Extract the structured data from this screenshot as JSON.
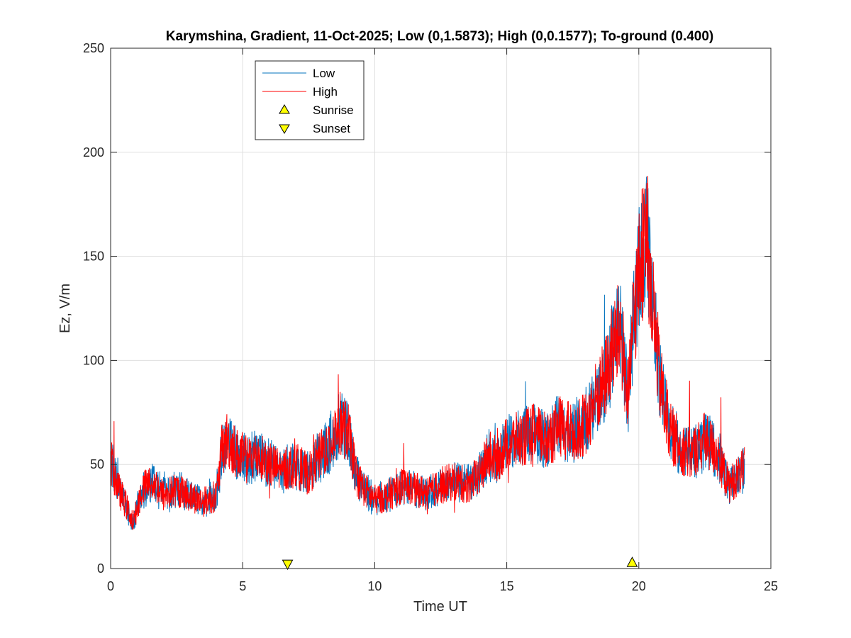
{
  "chart_data": {
    "type": "line",
    "title": "Karymshina, Gradient, 11-Oct-2025;  Low (0,1.5873); High (0,0.1577); To-ground (0.400)",
    "xlabel": "Time UT",
    "ylabel": "Ez, V/m",
    "xlim": [
      0,
      25
    ],
    "ylim": [
      0,
      250
    ],
    "xticks": [
      0,
      5,
      10,
      15,
      20,
      25
    ],
    "yticks": [
      0,
      50,
      100,
      150,
      200,
      250
    ],
    "grid": true,
    "legend_position": "top-left",
    "series": [
      {
        "name": "Low",
        "color": "#0072BD",
        "x": [
          0,
          0.3,
          0.6,
          0.85,
          1.2,
          1.6,
          2,
          2.5,
          3,
          3.5,
          4,
          4.2,
          4.4,
          4.8,
          5.2,
          5.6,
          6,
          6.5,
          7,
          7.5,
          7.8,
          8.3,
          8.7,
          9,
          9.3,
          9.6,
          10,
          10.5,
          11,
          11.5,
          12,
          12.5,
          13,
          13.5,
          14,
          14.3,
          14.6,
          15,
          15.5,
          16,
          16.5,
          17,
          17.5,
          18,
          18.3,
          18.7,
          19,
          19.3,
          19.6,
          19.8,
          20.1,
          20.3,
          20.5,
          20.8,
          21.2,
          21.6,
          22,
          22.5,
          23,
          23.4,
          23.8,
          24
        ],
        "y": [
          52,
          38,
          30,
          22,
          38,
          42,
          35,
          38,
          35,
          32,
          35,
          55,
          62,
          55,
          52,
          55,
          50,
          47,
          50,
          45,
          52,
          60,
          70,
          65,
          45,
          38,
          33,
          35,
          40,
          38,
          36,
          40,
          42,
          40,
          45,
          55,
          52,
          60,
          62,
          65,
          62,
          68,
          65,
          70,
          80,
          90,
          105,
          115,
          80,
          120,
          150,
          160,
          130,
          90,
          65,
          58,
          55,
          62,
          55,
          40,
          45,
          48
        ]
      },
      {
        "name": "High",
        "color": "#FF0000",
        "x": [
          0,
          0.3,
          0.6,
          0.85,
          1.2,
          1.6,
          2,
          2.5,
          3,
          3.5,
          4,
          4.2,
          4.4,
          4.8,
          5.2,
          5.6,
          6,
          6.5,
          7,
          7.5,
          7.8,
          8.3,
          8.7,
          9,
          9.3,
          9.6,
          10,
          10.5,
          11,
          11.5,
          12,
          12.5,
          13,
          13.5,
          14,
          14.3,
          14.6,
          15,
          15.5,
          16,
          16.5,
          17,
          17.5,
          18,
          18.3,
          18.7,
          19,
          19.3,
          19.6,
          19.8,
          20.1,
          20.3,
          20.5,
          20.8,
          21.2,
          21.6,
          22,
          22.5,
          23,
          23.4,
          23.8,
          24
        ],
        "y": [
          52,
          38,
          30,
          22,
          38,
          42,
          35,
          38,
          35,
          32,
          35,
          55,
          62,
          55,
          52,
          55,
          50,
          47,
          50,
          45,
          52,
          60,
          70,
          65,
          45,
          38,
          33,
          35,
          40,
          38,
          36,
          40,
          42,
          40,
          45,
          55,
          52,
          60,
          62,
          65,
          62,
          68,
          65,
          70,
          80,
          90,
          105,
          115,
          80,
          120,
          150,
          160,
          130,
          90,
          65,
          58,
          55,
          62,
          55,
          40,
          45,
          48
        ]
      }
    ],
    "markers": [
      {
        "name": "Sunrise",
        "symbol": "triangle-up",
        "color": "#FFFF00",
        "x": 19.75,
        "y": 3
      },
      {
        "name": "Sunset",
        "symbol": "triangle-down",
        "color": "#FFFF00",
        "x": 6.7,
        "y": 2
      }
    ]
  }
}
